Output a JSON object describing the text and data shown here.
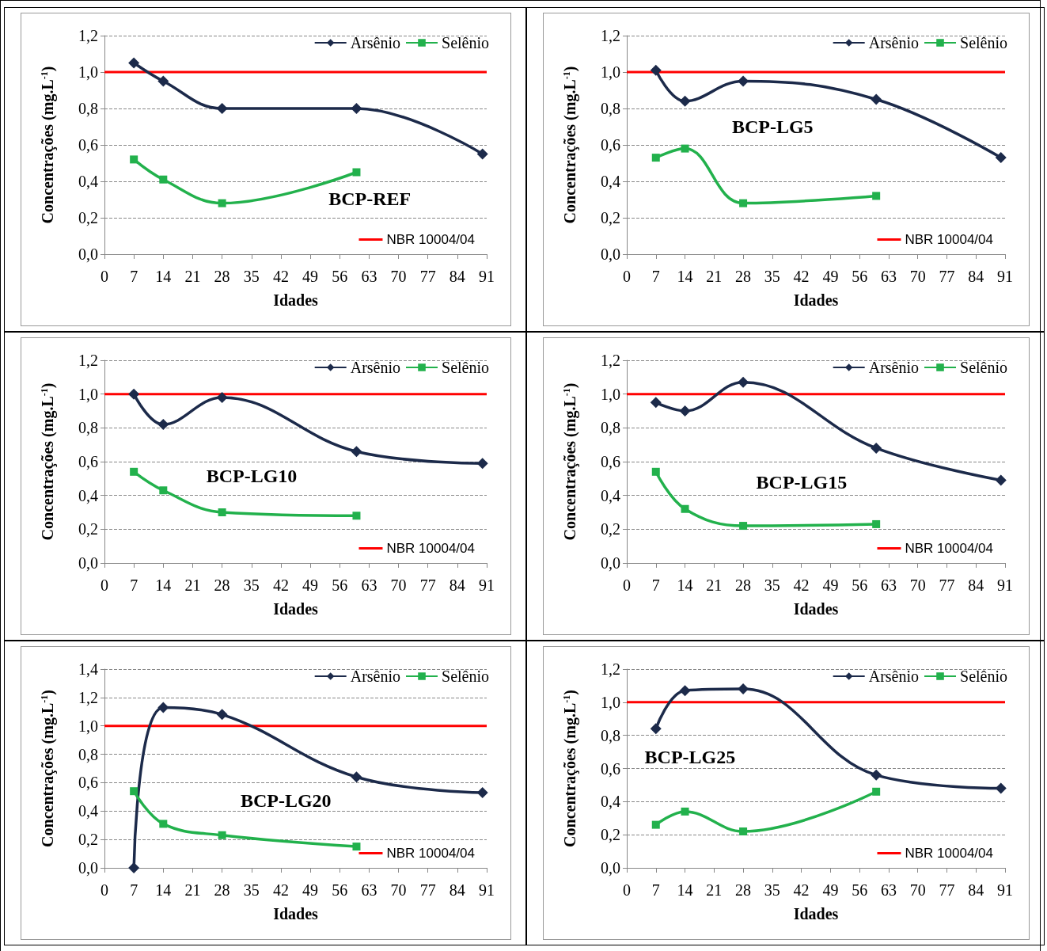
{
  "chart_data": [
    {
      "type": "line",
      "title": "BCP-REF",
      "xlabel": "Idades",
      "ylabel": "Concentrações (mg.L$^{-1}$)",
      "x": [
        7,
        14,
        28,
        60,
        90
      ],
      "series": [
        {
          "name": "Arsênio",
          "color": "#1c2a4a",
          "marker": "diamond",
          "values": [
            1.05,
            0.95,
            0.8,
            0.8,
            0.55
          ]
        },
        {
          "name": "Selênio",
          "color": "#22b14c",
          "marker": "square",
          "values": [
            0.52,
            0.41,
            0.28,
            0.45,
            null
          ]
        }
      ],
      "ref_lines": [
        {
          "axis": "y",
          "value": 1.0,
          "label": "NBR 10004/04",
          "color": "#ff0000"
        }
      ],
      "xlim": [
        0,
        91
      ],
      "xticks": [
        0,
        7,
        14,
        21,
        28,
        35,
        42,
        49,
        56,
        63,
        70,
        77,
        84,
        91
      ],
      "ylim": [
        0,
        1.2
      ],
      "yticks": [
        {
          "value": 0,
          "label": "0,0"
        },
        {
          "value": 0.2,
          "label": "0,2"
        },
        {
          "value": 0.4,
          "label": "0,4"
        },
        {
          "value": 0.6,
          "label": "0,6"
        },
        {
          "value": 0.8,
          "label": "0,8"
        },
        {
          "value": 1.0,
          "label": "1,0"
        },
        {
          "value": 1.2,
          "label": "1,2"
        }
      ],
      "grid": "y",
      "legend": "top right"
    },
    {
      "type": "line",
      "title": "BCP-LG5",
      "xlabel": "Idades",
      "ylabel": "Concentrações (mg.L$^{-1}$)",
      "x": [
        7,
        14,
        28,
        60,
        90
      ],
      "series": [
        {
          "name": "Arsênio",
          "color": "#1c2a4a",
          "marker": "diamond",
          "values": [
            1.01,
            0.84,
            0.95,
            0.85,
            0.53
          ]
        },
        {
          "name": "Selênio",
          "color": "#22b14c",
          "marker": "square",
          "values": [
            0.53,
            0.58,
            0.28,
            0.32,
            null
          ]
        }
      ],
      "ref_lines": [
        {
          "axis": "y",
          "value": 1.0,
          "label": "NBR 10004/04",
          "color": "#ff0000"
        }
      ],
      "xlim": [
        0,
        91
      ],
      "xticks": [
        0,
        7,
        14,
        21,
        28,
        35,
        42,
        49,
        56,
        63,
        70,
        77,
        84,
        91
      ],
      "ylim": [
        0,
        1.2
      ],
      "yticks": [
        {
          "value": 0,
          "label": "0,0"
        },
        {
          "value": 0.2,
          "label": "0,2"
        },
        {
          "value": 0.4,
          "label": "0,4"
        },
        {
          "value": 0.6,
          "label": "0,6"
        },
        {
          "value": 0.8,
          "label": "0,8"
        },
        {
          "value": 1.0,
          "label": "1,0"
        },
        {
          "value": 1.2,
          "label": "1,2"
        }
      ],
      "grid": "y",
      "legend": "top right"
    },
    {
      "type": "line",
      "title": "BCP-LG10",
      "xlabel": "Idades",
      "ylabel": "Concentrações (mg.L$^{-1}$)",
      "x": [
        7,
        14,
        28,
        60,
        90
      ],
      "series": [
        {
          "name": "Arsênio",
          "color": "#1c2a4a",
          "marker": "diamond",
          "values": [
            1.0,
            0.82,
            0.98,
            0.66,
            0.59
          ]
        },
        {
          "name": "Selênio",
          "color": "#22b14c",
          "marker": "square",
          "values": [
            0.54,
            0.43,
            0.3,
            0.28,
            null
          ]
        }
      ],
      "ref_lines": [
        {
          "axis": "y",
          "value": 1.0,
          "label": "NBR 10004/04",
          "color": "#ff0000"
        }
      ],
      "xlim": [
        0,
        91
      ],
      "xticks": [
        0,
        7,
        14,
        21,
        28,
        35,
        42,
        49,
        56,
        63,
        70,
        77,
        84,
        91
      ],
      "ylim": [
        0,
        1.2
      ],
      "yticks": [
        {
          "value": 0,
          "label": "0,0"
        },
        {
          "value": 0.2,
          "label": "0,2"
        },
        {
          "value": 0.4,
          "label": "0,4"
        },
        {
          "value": 0.6,
          "label": "0,6"
        },
        {
          "value": 0.8,
          "label": "0,8"
        },
        {
          "value": 1.0,
          "label": "1,0"
        },
        {
          "value": 1.2,
          "label": "1,2"
        }
      ],
      "grid": "y",
      "legend": "top right"
    },
    {
      "type": "line",
      "title": "BCP-LG15",
      "xlabel": "Idades",
      "ylabel": "Concentrações (mg.L$^{-1}$)",
      "x": [
        7,
        14,
        28,
        60,
        90
      ],
      "series": [
        {
          "name": "Arsênio",
          "color": "#1c2a4a",
          "marker": "diamond",
          "values": [
            0.95,
            0.9,
            1.07,
            0.68,
            0.49
          ]
        },
        {
          "name": "Selênio",
          "color": "#22b14c",
          "marker": "square",
          "values": [
            0.54,
            0.32,
            0.22,
            0.23,
            null
          ]
        }
      ],
      "ref_lines": [
        {
          "axis": "y",
          "value": 1.0,
          "label": "NBR 10004/04",
          "color": "#ff0000"
        }
      ],
      "xlim": [
        0,
        91
      ],
      "xticks": [
        0,
        7,
        14,
        21,
        28,
        35,
        42,
        49,
        56,
        63,
        70,
        77,
        84,
        91
      ],
      "ylim": [
        0,
        1.2
      ],
      "yticks": [
        {
          "value": 0,
          "label": "0,0"
        },
        {
          "value": 0.2,
          "label": "0,2"
        },
        {
          "value": 0.4,
          "label": "0,4"
        },
        {
          "value": 0.6,
          "label": "0,6"
        },
        {
          "value": 0.8,
          "label": "0,8"
        },
        {
          "value": 1.0,
          "label": "1,0"
        },
        {
          "value": 1.2,
          "label": "1,2"
        }
      ],
      "grid": "y",
      "legend": "top right"
    },
    {
      "type": "line",
      "title": "BCP-LG20",
      "xlabel": "Idades",
      "ylabel": "Concentrações (mg.L$^{-1}$)",
      "x": [
        7,
        14,
        28,
        60,
        90
      ],
      "series": [
        {
          "name": "Arsênio",
          "color": "#1c2a4a",
          "marker": "diamond",
          "values": [
            0,
            1.13,
            1.08,
            0.64,
            0.53
          ]
        },
        {
          "name": "Selênio",
          "color": "#22b14c",
          "marker": "square",
          "values": [
            0.54,
            0.31,
            0.23,
            0.15,
            null
          ]
        }
      ],
      "ref_lines": [
        {
          "axis": "y",
          "value": 1.0,
          "label": "NBR 10004/04",
          "color": "#ff0000"
        }
      ],
      "xlim": [
        0,
        91
      ],
      "xticks": [
        0,
        7,
        14,
        21,
        28,
        35,
        42,
        49,
        56,
        63,
        70,
        77,
        84,
        91
      ],
      "ylim": [
        0,
        1.4
      ],
      "yticks": [
        {
          "value": 0,
          "label": "0,0"
        },
        {
          "value": 0.2,
          "label": "0,2"
        },
        {
          "value": 0.4,
          "label": "0,4"
        },
        {
          "value": 0.6,
          "label": "0,6"
        },
        {
          "value": 0.8,
          "label": "0,8"
        },
        {
          "value": 1.0,
          "label": "1,0"
        },
        {
          "value": 1.2,
          "label": "1,2"
        },
        {
          "value": 1.4,
          "label": "1,4"
        }
      ],
      "grid": "y",
      "legend": "top right"
    },
    {
      "type": "line",
      "title": "BCP-LG25",
      "xlabel": "Idades",
      "ylabel": "Concentrações (mg.L$^{-1}$)",
      "x": [
        7,
        14,
        28,
        60,
        90
      ],
      "series": [
        {
          "name": "Arsênio",
          "color": "#1c2a4a",
          "marker": "diamond",
          "values": [
            0.84,
            1.07,
            1.08,
            0.56,
            0.48
          ]
        },
        {
          "name": "Selênio",
          "color": "#22b14c",
          "marker": "square",
          "values": [
            0.26,
            0.34,
            0.22,
            0.46,
            null
          ]
        }
      ],
      "ref_lines": [
        {
          "axis": "y",
          "value": 1.0,
          "label": "NBR 10004/04",
          "color": "#ff0000"
        }
      ],
      "xlim": [
        0,
        91
      ],
      "xticks": [
        0,
        7,
        14,
        21,
        28,
        35,
        42,
        49,
        56,
        63,
        70,
        77,
        84,
        91
      ],
      "ylim": [
        0,
        1.2
      ],
      "yticks": [
        {
          "value": 0,
          "label": "0,0"
        },
        {
          "value": 0.2,
          "label": "0,2"
        },
        {
          "value": 0.4,
          "label": "0,4"
        },
        {
          "value": 0.6,
          "label": "0,6"
        },
        {
          "value": 0.8,
          "label": "0,8"
        },
        {
          "value": 1.0,
          "label": "1,0"
        },
        {
          "value": 1.2,
          "label": "1,2"
        }
      ],
      "grid": "y",
      "legend": "top right"
    }
  ]
}
